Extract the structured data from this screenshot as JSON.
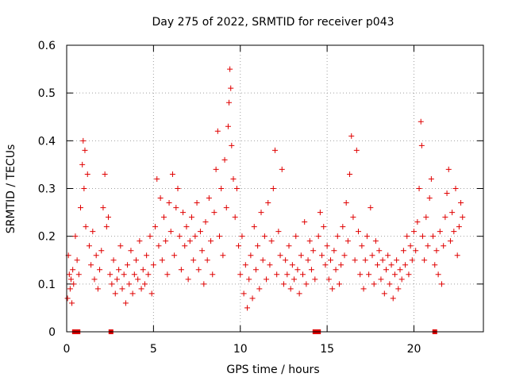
{
  "chart_data": {
    "type": "scatter",
    "title": "Day 275 of 2022, SRMTID for receiver p043",
    "xlabel": "GPS time / hours",
    "ylabel": "SRMTID / TECUs",
    "xlim": [
      0,
      24
    ],
    "ylim": [
      0,
      0.6
    ],
    "xticks": [
      0,
      5,
      10,
      15,
      20
    ],
    "xtick_labels": [
      "0",
      "5",
      "10",
      "15",
      "20"
    ],
    "yticks": [
      0,
      0.1,
      0.2,
      0.3,
      0.4,
      0.5,
      0.6
    ],
    "ytick_labels": [
      "0",
      "0.1",
      "0.2",
      "0.3",
      "0.4",
      "0.5",
      "0.6"
    ],
    "grid": true,
    "marker": "+",
    "color": "#e00000",
    "series": [
      {
        "name": "SRMTID",
        "points": [
          [
            0.05,
            0.07
          ],
          [
            0.1,
            0.16
          ],
          [
            0.15,
            0.12
          ],
          [
            0.2,
            0.09
          ],
          [
            0.25,
            0.11
          ],
          [
            0.3,
            0.06
          ],
          [
            0.35,
            0.13
          ],
          [
            0.4,
            0.1
          ],
          [
            0.5,
            0.2
          ],
          [
            0.6,
            0.15
          ],
          [
            0.7,
            0.12
          ],
          [
            0.8,
            0.26
          ],
          [
            0.9,
            0.35
          ],
          [
            0.95,
            0.4
          ],
          [
            1.0,
            0.3
          ],
          [
            1.05,
            0.38
          ],
          [
            1.1,
            0.22
          ],
          [
            1.2,
            0.33
          ],
          [
            1.3,
            0.18
          ],
          [
            1.4,
            0.14
          ],
          [
            1.5,
            0.21
          ],
          [
            1.6,
            0.11
          ],
          [
            1.7,
            0.16
          ],
          [
            1.8,
            0.09
          ],
          [
            1.9,
            0.13
          ],
          [
            2.0,
            0.17
          ],
          [
            2.1,
            0.26
          ],
          [
            2.2,
            0.33
          ],
          [
            2.3,
            0.22
          ],
          [
            2.4,
            0.24
          ],
          [
            2.5,
            0.12
          ],
          [
            2.6,
            0.1
          ],
          [
            2.7,
            0.15
          ],
          [
            2.8,
            0.08
          ],
          [
            2.9,
            0.11
          ],
          [
            3.0,
            0.13
          ],
          [
            3.1,
            0.18
          ],
          [
            3.2,
            0.09
          ],
          [
            3.3,
            0.12
          ],
          [
            3.4,
            0.06
          ],
          [
            3.5,
            0.14
          ],
          [
            3.6,
            0.1
          ],
          [
            3.7,
            0.17
          ],
          [
            3.8,
            0.08
          ],
          [
            3.9,
            0.12
          ],
          [
            4.0,
            0.15
          ],
          [
            4.1,
            0.11
          ],
          [
            4.2,
            0.19
          ],
          [
            4.3,
            0.09
          ],
          [
            4.4,
            0.13
          ],
          [
            4.5,
            0.1
          ],
          [
            4.6,
            0.16
          ],
          [
            4.7,
            0.12
          ],
          [
            4.8,
            0.2
          ],
          [
            4.9,
            0.08
          ],
          [
            5.0,
            0.14
          ],
          [
            5.1,
            0.22
          ],
          [
            5.2,
            0.32
          ],
          [
            5.3,
            0.18
          ],
          [
            5.4,
            0.28
          ],
          [
            5.5,
            0.15
          ],
          [
            5.6,
            0.24
          ],
          [
            5.7,
            0.19
          ],
          [
            5.8,
            0.12
          ],
          [
            5.9,
            0.27
          ],
          [
            6.0,
            0.21
          ],
          [
            6.1,
            0.33
          ],
          [
            6.2,
            0.16
          ],
          [
            6.3,
            0.26
          ],
          [
            6.4,
            0.3
          ],
          [
            6.5,
            0.2
          ],
          [
            6.6,
            0.13
          ],
          [
            6.7,
            0.25
          ],
          [
            6.8,
            0.18
          ],
          [
            6.9,
            0.22
          ],
          [
            7.0,
            0.11
          ],
          [
            7.1,
            0.19
          ],
          [
            7.2,
            0.24
          ],
          [
            7.3,
            0.15
          ],
          [
            7.4,
            0.2
          ],
          [
            7.5,
            0.27
          ],
          [
            7.6,
            0.13
          ],
          [
            7.7,
            0.21
          ],
          [
            7.8,
            0.17
          ],
          [
            7.9,
            0.1
          ],
          [
            8.0,
            0.23
          ],
          [
            8.1,
            0.15
          ],
          [
            8.2,
            0.28
          ],
          [
            8.3,
            0.19
          ],
          [
            8.4,
            0.12
          ],
          [
            8.5,
            0.25
          ],
          [
            8.6,
            0.34
          ],
          [
            8.7,
            0.42
          ],
          [
            8.8,
            0.2
          ],
          [
            8.9,
            0.3
          ],
          [
            9.0,
            0.16
          ],
          [
            9.1,
            0.36
          ],
          [
            9.2,
            0.26
          ],
          [
            9.3,
            0.43
          ],
          [
            9.35,
            0.48
          ],
          [
            9.4,
            0.55
          ],
          [
            9.45,
            0.51
          ],
          [
            9.5,
            0.39
          ],
          [
            9.6,
            0.32
          ],
          [
            9.7,
            0.24
          ],
          [
            9.8,
            0.3
          ],
          [
            9.9,
            0.18
          ],
          [
            10.0,
            0.12
          ],
          [
            10.1,
            0.2
          ],
          [
            10.2,
            0.08
          ],
          [
            10.3,
            0.14
          ],
          [
            10.4,
            0.05
          ],
          [
            10.5,
            0.11
          ],
          [
            10.6,
            0.16
          ],
          [
            10.7,
            0.07
          ],
          [
            10.8,
            0.22
          ],
          [
            10.9,
            0.13
          ],
          [
            11.0,
            0.18
          ],
          [
            11.1,
            0.09
          ],
          [
            11.2,
            0.25
          ],
          [
            11.3,
            0.15
          ],
          [
            11.4,
            0.2
          ],
          [
            11.5,
            0.11
          ],
          [
            11.6,
            0.27
          ],
          [
            11.7,
            0.14
          ],
          [
            11.8,
            0.19
          ],
          [
            11.9,
            0.3
          ],
          [
            12.0,
            0.38
          ],
          [
            12.1,
            0.12
          ],
          [
            12.2,
            0.21
          ],
          [
            12.3,
            0.16
          ],
          [
            12.4,
            0.34
          ],
          [
            12.5,
            0.1
          ],
          [
            12.6,
            0.15
          ],
          [
            12.7,
            0.12
          ],
          [
            12.8,
            0.18
          ],
          [
            12.9,
            0.09
          ],
          [
            13.0,
            0.14
          ],
          [
            13.1,
            0.11
          ],
          [
            13.2,
            0.2
          ],
          [
            13.3,
            0.13
          ],
          [
            13.4,
            0.08
          ],
          [
            13.5,
            0.16
          ],
          [
            13.6,
            0.12
          ],
          [
            13.7,
            0.23
          ],
          [
            13.8,
            0.1
          ],
          [
            13.9,
            0.15
          ],
          [
            14.0,
            0.19
          ],
          [
            14.1,
            0.13
          ],
          [
            14.2,
            0.17
          ],
          [
            14.3,
            0.11
          ],
          [
            14.5,
            0.2
          ],
          [
            14.6,
            0.25
          ],
          [
            14.7,
            0.16
          ],
          [
            14.8,
            0.22
          ],
          [
            14.9,
            0.14
          ],
          [
            15.0,
            0.18
          ],
          [
            15.1,
            0.11
          ],
          [
            15.2,
            0.15
          ],
          [
            15.3,
            0.09
          ],
          [
            15.4,
            0.17
          ],
          [
            15.5,
            0.13
          ],
          [
            15.6,
            0.2
          ],
          [
            15.7,
            0.1
          ],
          [
            15.8,
            0.14
          ],
          [
            15.9,
            0.22
          ],
          [
            16.0,
            0.16
          ],
          [
            16.1,
            0.27
          ],
          [
            16.2,
            0.19
          ],
          [
            16.3,
            0.33
          ],
          [
            16.4,
            0.41
          ],
          [
            16.5,
            0.24
          ],
          [
            16.6,
            0.15
          ],
          [
            16.7,
            0.38
          ],
          [
            16.8,
            0.21
          ],
          [
            16.9,
            0.12
          ],
          [
            17.0,
            0.18
          ],
          [
            17.1,
            0.09
          ],
          [
            17.2,
            0.15
          ],
          [
            17.3,
            0.2
          ],
          [
            17.4,
            0.12
          ],
          [
            17.5,
            0.26
          ],
          [
            17.6,
            0.16
          ],
          [
            17.7,
            0.1
          ],
          [
            17.8,
            0.19
          ],
          [
            17.9,
            0.14
          ],
          [
            18.0,
            0.17
          ],
          [
            18.1,
            0.11
          ],
          [
            18.2,
            0.15
          ],
          [
            18.3,
            0.08
          ],
          [
            18.4,
            0.13
          ],
          [
            18.5,
            0.16
          ],
          [
            18.6,
            0.1
          ],
          [
            18.7,
            0.14
          ],
          [
            18.8,
            0.07
          ],
          [
            18.9,
            0.12
          ],
          [
            19.0,
            0.15
          ],
          [
            19.1,
            0.09
          ],
          [
            19.2,
            0.13
          ],
          [
            19.3,
            0.11
          ],
          [
            19.4,
            0.17
          ],
          [
            19.5,
            0.14
          ],
          [
            19.6,
            0.2
          ],
          [
            19.7,
            0.12
          ],
          [
            19.8,
            0.18
          ],
          [
            19.9,
            0.15
          ],
          [
            20.0,
            0.21
          ],
          [
            20.1,
            0.17
          ],
          [
            20.2,
            0.23
          ],
          [
            20.3,
            0.3
          ],
          [
            20.4,
            0.44
          ],
          [
            20.45,
            0.39
          ],
          [
            20.5,
            0.2
          ],
          [
            20.6,
            0.15
          ],
          [
            20.7,
            0.24
          ],
          [
            20.8,
            0.18
          ],
          [
            20.9,
            0.28
          ],
          [
            21.0,
            0.32
          ],
          [
            21.1,
            0.2
          ],
          [
            21.2,
            0.14
          ],
          [
            21.3,
            0.17
          ],
          [
            21.4,
            0.12
          ],
          [
            21.5,
            0.21
          ],
          [
            21.6,
            0.1
          ],
          [
            21.7,
            0.18
          ],
          [
            21.8,
            0.24
          ],
          [
            21.9,
            0.29
          ],
          [
            22.0,
            0.34
          ],
          [
            22.1,
            0.19
          ],
          [
            22.2,
            0.25
          ],
          [
            22.3,
            0.21
          ],
          [
            22.4,
            0.3
          ],
          [
            22.5,
            0.16
          ],
          [
            22.6,
            0.22
          ],
          [
            22.7,
            0.27
          ],
          [
            22.8,
            0.24
          ]
        ]
      }
    ],
    "zero_points": [
      0.45,
      0.65,
      2.55,
      14.3,
      14.5,
      21.2
    ]
  }
}
